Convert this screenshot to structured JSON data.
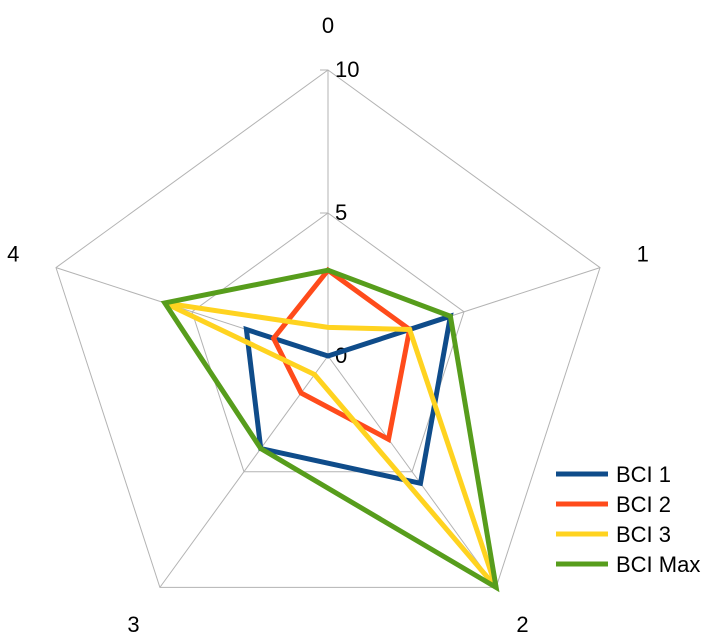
{
  "chart_data": {
    "type": "radar",
    "categories": [
      "0",
      "1",
      "2",
      "3",
      "4"
    ],
    "rlim": [
      0,
      10
    ],
    "r_ticks": [
      0,
      5,
      10
    ],
    "r_tick_labels": [
      "0",
      "5",
      "10"
    ],
    "grid": true,
    "legend_position": "right",
    "series": [
      {
        "name": "BCI 1",
        "color": "#0f4c8a",
        "values": [
          0.0,
          4.5,
          5.5,
          4.0,
          3.0
        ]
      },
      {
        "name": "BCI 2",
        "color": "#ff4b1b",
        "values": [
          3.0,
          3.0,
          3.6,
          1.6,
          2.0
        ]
      },
      {
        "name": "BCI 3",
        "color": "#ffd320",
        "values": [
          1.0,
          3.0,
          10.0,
          0.8,
          6.0
        ]
      },
      {
        "name": "BCI Max",
        "color": "#579d1c",
        "values": [
          3.0,
          4.5,
          10.0,
          4.0,
          6.0
        ]
      }
    ]
  }
}
